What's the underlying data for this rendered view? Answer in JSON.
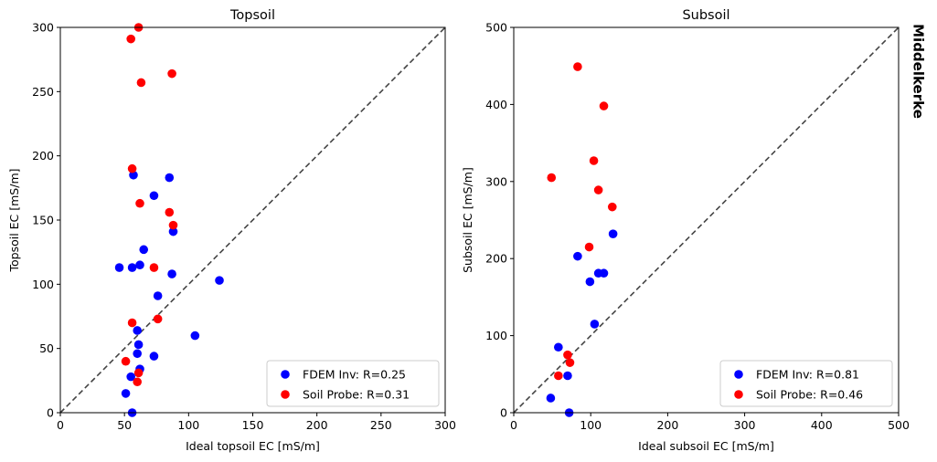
{
  "figure": {
    "side_label": "Middelkerke"
  },
  "colors": {
    "fdem": "#0000ff",
    "probe": "#ff0000",
    "diagonal": "#444444"
  },
  "chart_data": [
    {
      "type": "scatter",
      "title": "Topsoil",
      "xlabel": "Ideal topsoil EC [mS/m]",
      "ylabel": "Topsoil EC [mS/m]",
      "xlim": [
        0,
        300
      ],
      "ylim": [
        0,
        300
      ],
      "xticks": [
        0,
        50,
        100,
        150,
        200,
        250,
        300
      ],
      "yticks": [
        0,
        50,
        100,
        150,
        200,
        250,
        300
      ],
      "identity_line": true,
      "legend_position": "lower-right",
      "series": [
        {
          "name": "FDEM Inv: R=0.25",
          "color": "#0000ff",
          "points": [
            [
              46,
              113
            ],
            [
              56,
              113
            ],
            [
              62,
              115
            ],
            [
              65,
              127
            ],
            [
              57,
              185
            ],
            [
              85,
              183
            ],
            [
              73,
              169
            ],
            [
              88,
              141
            ],
            [
              87,
              108
            ],
            [
              76,
              91
            ],
            [
              60,
              64
            ],
            [
              61,
              53
            ],
            [
              60,
              46
            ],
            [
              73,
              44
            ],
            [
              62,
              34
            ],
            [
              55,
              28
            ],
            [
              51,
              15
            ],
            [
              56,
              0
            ],
            [
              105,
              60
            ],
            [
              124,
              103
            ]
          ]
        },
        {
          "name": "Soil Probe: R=0.31",
          "color": "#ff0000",
          "points": [
            [
              61,
              300
            ],
            [
              55,
              291
            ],
            [
              87,
              264
            ],
            [
              63,
              257
            ],
            [
              56,
              190
            ],
            [
              62,
              163
            ],
            [
              85,
              156
            ],
            [
              88,
              146
            ],
            [
              73,
              113
            ],
            [
              56,
              70
            ],
            [
              76,
              73
            ],
            [
              51,
              40
            ],
            [
              61,
              31
            ],
            [
              60,
              24
            ]
          ]
        }
      ]
    },
    {
      "type": "scatter",
      "title": "Subsoil",
      "xlabel": "Ideal subsoil EC [mS/m]",
      "ylabel": "Subsoil EC [mS/m]",
      "xlim": [
        0,
        500
      ],
      "ylim": [
        0,
        500
      ],
      "xticks": [
        0,
        100,
        200,
        300,
        400,
        500
      ],
      "yticks": [
        0,
        100,
        200,
        300,
        400,
        500
      ],
      "identity_line": true,
      "legend_position": "lower-right",
      "series": [
        {
          "name": "FDEM Inv: R=0.81",
          "color": "#0000ff",
          "points": [
            [
              83,
              203
            ],
            [
              110,
              181
            ],
            [
              117,
              181
            ],
            [
              99,
              170
            ],
            [
              129,
              232
            ],
            [
              105,
              115
            ],
            [
              58,
              85
            ],
            [
              70,
              48
            ],
            [
              48,
              19
            ],
            [
              72,
              0
            ]
          ]
        },
        {
          "name": "Soil Probe: R=0.46",
          "color": "#ff0000",
          "points": [
            [
              83,
              449
            ],
            [
              117,
              398
            ],
            [
              104,
              327
            ],
            [
              49,
              305
            ],
            [
              110,
              289
            ],
            [
              128,
              267
            ],
            [
              98,
              215
            ],
            [
              70,
              75
            ],
            [
              73,
              65
            ],
            [
              58,
              48
            ]
          ]
        }
      ]
    }
  ]
}
